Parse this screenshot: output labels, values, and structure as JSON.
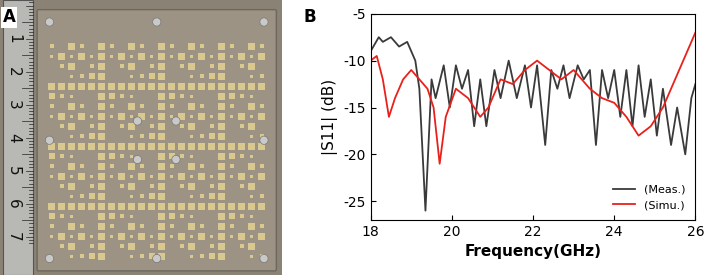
{
  "panel_a": {
    "panel_label": "A",
    "ruler_numbers": [
      1,
      2,
      3,
      4,
      5,
      6,
      7
    ]
  },
  "chart_data": {
    "type": "line",
    "panel_label": "B",
    "x_label": "Frequency(GHz)",
    "y_label": "|S11| (dB)",
    "xlim": [
      18,
      26
    ],
    "xticks": [
      18,
      20,
      22,
      24,
      26
    ],
    "ylim": [
      -27,
      -5
    ],
    "yticks": [
      -25,
      -20,
      -15,
      -10,
      -5
    ],
    "legend": "lower right",
    "series": [
      {
        "name": "(Meas.)",
        "color": "#3a3a3a",
        "x": [
          18,
          18.2,
          18.3,
          18.5,
          18.7,
          18.9,
          19.1,
          19.2,
          19.35,
          19.5,
          19.6,
          19.8,
          19.95,
          20.1,
          20.25,
          20.4,
          20.55,
          20.7,
          20.85,
          21.05,
          21.2,
          21.4,
          21.6,
          21.8,
          21.95,
          22.1,
          22.3,
          22.45,
          22.6,
          22.75,
          22.9,
          23.1,
          23.25,
          23.4,
          23.55,
          23.7,
          23.85,
          24.0,
          24.15,
          24.3,
          24.45,
          24.6,
          24.75,
          24.9,
          25.05,
          25.2,
          25.4,
          25.55,
          25.75,
          25.9,
          26
        ],
        "values": [
          -9,
          -7.5,
          -8,
          -7.5,
          -8.5,
          -8,
          -10,
          -13,
          -26,
          -12,
          -14,
          -10.5,
          -15,
          -10.5,
          -13,
          -11,
          -17,
          -12,
          -17,
          -11,
          -14,
          -10,
          -14,
          -10.5,
          -15,
          -10.5,
          -19,
          -11,
          -13,
          -10.5,
          -14,
          -10.5,
          -12,
          -11,
          -19,
          -11,
          -14,
          -11,
          -16,
          -11,
          -17,
          -10.5,
          -16,
          -12,
          -18,
          -13,
          -19,
          -15,
          -20,
          -14,
          -12.5
        ]
      },
      {
        "name": "(Simu.)",
        "color": "#e8211c",
        "x": [
          18,
          18.15,
          18.3,
          18.45,
          18.6,
          18.8,
          19.0,
          19.2,
          19.4,
          19.55,
          19.7,
          19.85,
          20.1,
          20.4,
          20.7,
          20.9,
          21.2,
          21.5,
          21.8,
          22.1,
          22.4,
          22.7,
          23.0,
          23.4,
          23.7,
          24.0,
          24.3,
          24.6,
          24.9,
          25.2,
          25.5,
          25.8,
          26
        ],
        "values": [
          -10,
          -9.5,
          -12,
          -16,
          -14,
          -12,
          -11,
          -12,
          -13,
          -15,
          -21,
          -16,
          -13,
          -14,
          -16,
          -15,
          -12,
          -12.5,
          -11,
          -10,
          -11,
          -12,
          -11,
          -13,
          -14,
          -14.5,
          -16,
          -18,
          -17,
          -15,
          -12,
          -9,
          -7
        ]
      }
    ]
  }
}
